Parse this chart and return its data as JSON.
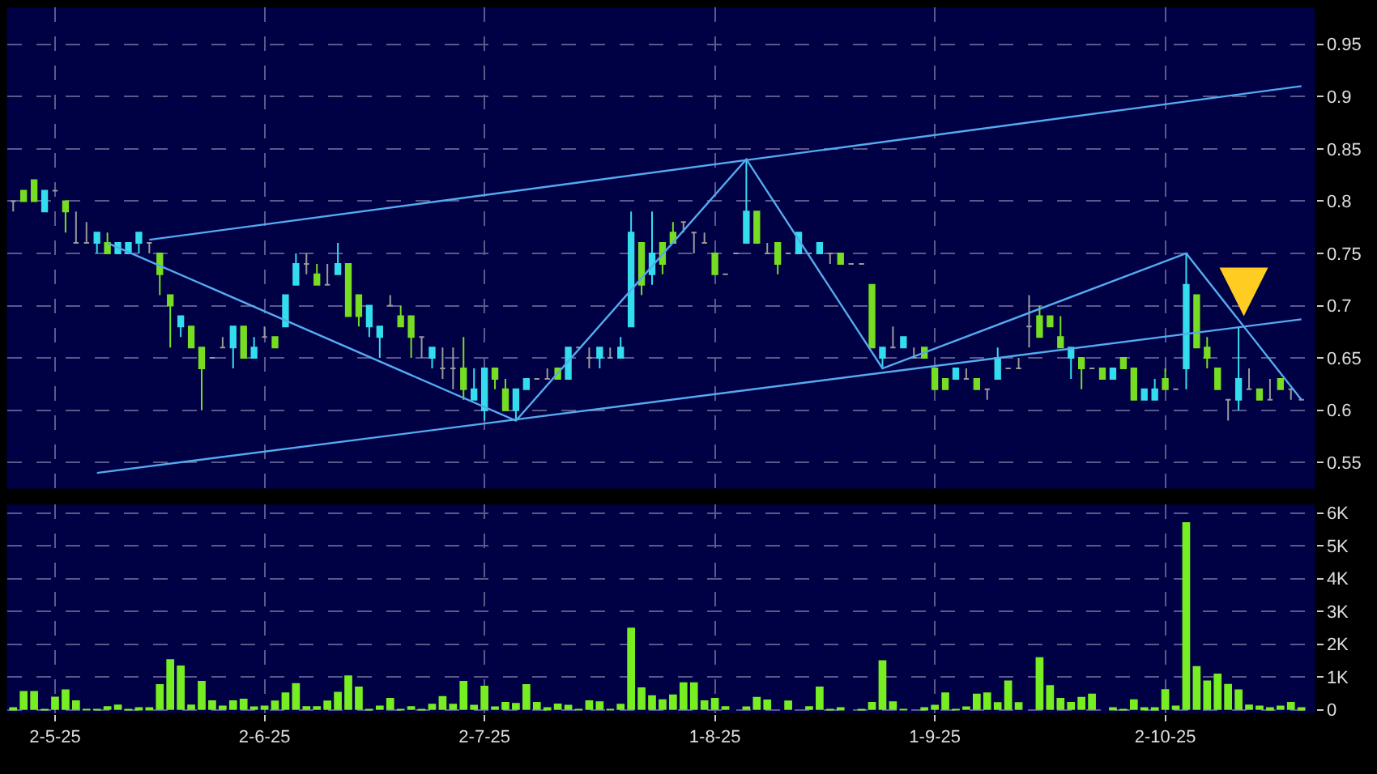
{
  "chart_data": [
    {
      "type": "candlestick",
      "categories": [
        null,
        null,
        null,
        null,
        null,
        null,
        null,
        null,
        null,
        null,
        null,
        null,
        null,
        null,
        null,
        null,
        null,
        null,
        null,
        null,
        null,
        null,
        null,
        null,
        null,
        null,
        null,
        null,
        null,
        null,
        null,
        null,
        null,
        null,
        null,
        null,
        null,
        null,
        null,
        null,
        null,
        null,
        null,
        null,
        null,
        null,
        null,
        null,
        null,
        null,
        null,
        null,
        null,
        null,
        null,
        null,
        null,
        null,
        null,
        null,
        null,
        null,
        null,
        null,
        null,
        null,
        null,
        null,
        null,
        null,
        null,
        null,
        null,
        null,
        null,
        null,
        null,
        null,
        null,
        null,
        null,
        null,
        null,
        null,
        null,
        null,
        null,
        null,
        null,
        null,
        null,
        null,
        null,
        null,
        null,
        null,
        null,
        null,
        null,
        null,
        null,
        null,
        null,
        null,
        null,
        null,
        null,
        null,
        null,
        null,
        null,
        null,
        null,
        null,
        null,
        null,
        null,
        null,
        null,
        null,
        null,
        null,
        null,
        null
      ],
      "ohlc": [
        [
          0.8,
          0.8,
          0.79,
          0.8
        ],
        [
          0.81,
          0.81,
          0.8,
          0.8
        ],
        [
          0.82,
          0.82,
          0.8,
          0.8
        ],
        [
          0.79,
          0.81,
          0.79,
          0.81
        ],
        [
          0.81,
          0.81,
          0.81,
          0.81
        ],
        [
          0.8,
          0.8,
          0.77,
          0.79
        ],
        [
          0.76,
          0.79,
          0.76,
          0.76
        ],
        [
          0.76,
          0.78,
          0.76,
          0.76
        ],
        [
          0.76,
          0.77,
          0.75,
          0.77
        ],
        [
          0.76,
          0.77,
          0.75,
          0.75
        ],
        [
          0.75,
          0.76,
          0.75,
          0.76
        ],
        [
          0.75,
          0.76,
          0.75,
          0.76
        ],
        [
          0.76,
          0.77,
          0.75,
          0.77
        ],
        [
          0.76,
          0.76,
          0.75,
          0.76
        ],
        [
          0.75,
          0.75,
          0.71,
          0.73
        ],
        [
          0.71,
          0.71,
          0.66,
          0.7
        ],
        [
          0.68,
          0.69,
          0.67,
          0.69
        ],
        [
          0.68,
          0.68,
          0.66,
          0.66
        ],
        [
          0.66,
          0.66,
          0.6,
          0.64
        ],
        [
          0.65,
          0.65,
          0.65,
          0.65
        ],
        [
          0.66,
          0.67,
          0.66,
          0.66
        ],
        [
          0.66,
          0.68,
          0.64,
          0.68
        ],
        [
          0.68,
          0.68,
          0.65,
          0.65
        ],
        [
          0.65,
          0.67,
          0.65,
          0.66
        ],
        [
          0.67,
          0.68,
          0.67,
          0.67
        ],
        [
          0.67,
          0.67,
          0.66,
          0.66
        ],
        [
          0.68,
          0.71,
          0.68,
          0.71
        ],
        [
          0.72,
          0.75,
          0.72,
          0.74
        ],
        [
          0.74,
          0.75,
          0.73,
          0.74
        ],
        [
          0.73,
          0.74,
          0.72,
          0.72
        ],
        [
          0.72,
          0.74,
          0.72,
          0.72
        ],
        [
          0.73,
          0.76,
          0.73,
          0.74
        ],
        [
          0.74,
          0.74,
          0.69,
          0.69
        ],
        [
          0.71,
          0.71,
          0.68,
          0.69
        ],
        [
          0.68,
          0.7,
          0.67,
          0.7
        ],
        [
          0.67,
          0.68,
          0.65,
          0.68
        ],
        [
          0.7,
          0.71,
          0.7,
          0.7
        ],
        [
          0.69,
          0.7,
          0.68,
          0.68
        ],
        [
          0.69,
          0.69,
          0.65,
          0.67
        ],
        [
          0.67,
          0.67,
          0.65,
          0.67
        ],
        [
          0.65,
          0.66,
          0.64,
          0.66
        ],
        [
          0.64,
          0.66,
          0.63,
          0.64
        ],
        [
          0.64,
          0.66,
          0.62,
          0.64
        ],
        [
          0.64,
          0.67,
          0.61,
          0.62
        ],
        [
          0.61,
          0.64,
          0.61,
          0.62
        ],
        [
          0.6,
          0.64,
          0.59,
          0.64
        ],
        [
          0.64,
          0.64,
          0.62,
          0.63
        ],
        [
          0.62,
          0.63,
          0.6,
          0.6
        ],
        [
          0.6,
          0.62,
          0.59,
          0.62
        ],
        [
          0.62,
          0.63,
          0.62,
          0.63
        ],
        [
          0.63,
          0.63,
          0.63,
          0.63
        ],
        [
          0.63,
          0.64,
          0.63,
          0.63
        ],
        [
          0.64,
          0.64,
          0.63,
          0.63
        ],
        [
          0.63,
          0.66,
          0.63,
          0.66
        ],
        [
          0.66,
          0.66,
          0.66,
          0.66
        ],
        [
          0.65,
          0.66,
          0.64,
          0.65
        ],
        [
          0.65,
          0.66,
          0.64,
          0.66
        ],
        [
          0.65,
          0.66,
          0.65,
          0.65
        ],
        [
          0.65,
          0.67,
          0.65,
          0.66
        ],
        [
          0.68,
          0.79,
          0.68,
          0.77
        ],
        [
          0.76,
          0.76,
          0.71,
          0.72
        ],
        [
          0.73,
          0.79,
          0.72,
          0.75
        ],
        [
          0.76,
          0.76,
          0.73,
          0.74
        ],
        [
          0.77,
          0.78,
          0.76,
          0.76
        ],
        [
          0.78,
          0.78,
          0.77,
          0.78
        ],
        [
          0.77,
          0.77,
          0.75,
          0.77
        ],
        [
          0.76,
          0.77,
          0.76,
          0.76
        ],
        [
          0.75,
          0.75,
          0.73,
          0.73
        ],
        [
          0.73,
          0.73,
          0.73,
          0.73
        ],
        [
          0.75,
          0.75,
          0.75,
          0.75
        ],
        [
          0.76,
          0.84,
          0.76,
          0.79
        ],
        [
          0.79,
          0.79,
          0.76,
          0.76
        ],
        [
          0.75,
          0.76,
          0.75,
          0.75
        ],
        [
          0.76,
          0.76,
          0.73,
          0.74
        ],
        [
          0.75,
          0.75,
          0.75,
          0.75
        ],
        [
          0.75,
          0.77,
          0.75,
          0.77
        ],
        [
          0.75,
          0.75,
          0.75,
          0.75
        ],
        [
          0.75,
          0.76,
          0.75,
          0.76
        ],
        [
          0.75,
          0.75,
          0.74,
          0.75
        ],
        [
          0.75,
          0.75,
          0.74,
          0.74
        ],
        [
          0.74,
          0.74,
          0.74,
          0.74
        ],
        [
          0.74,
          0.74,
          0.74,
          0.74
        ],
        [
          0.72,
          0.72,
          0.66,
          0.66
        ],
        [
          0.65,
          0.66,
          0.64,
          0.66
        ],
        [
          0.66,
          0.68,
          0.66,
          0.66
        ],
        [
          0.66,
          0.67,
          0.66,
          0.67
        ],
        [
          0.65,
          0.66,
          0.65,
          0.65
        ],
        [
          0.66,
          0.66,
          0.65,
          0.65
        ],
        [
          0.64,
          0.64,
          0.62,
          0.62
        ],
        [
          0.63,
          0.63,
          0.62,
          0.62
        ],
        [
          0.63,
          0.64,
          0.63,
          0.64
        ],
        [
          0.63,
          0.64,
          0.63,
          0.63
        ],
        [
          0.63,
          0.63,
          0.62,
          0.62
        ],
        [
          0.62,
          0.62,
          0.61,
          0.62
        ],
        [
          0.63,
          0.66,
          0.63,
          0.65
        ],
        [
          0.64,
          0.64,
          0.64,
          0.64
        ],
        [
          0.64,
          0.65,
          0.64,
          0.64
        ],
        [
          0.68,
          0.71,
          0.66,
          0.68
        ],
        [
          0.69,
          0.7,
          0.67,
          0.67
        ],
        [
          0.69,
          0.69,
          0.68,
          0.68
        ],
        [
          0.67,
          0.69,
          0.66,
          0.66
        ],
        [
          0.65,
          0.66,
          0.63,
          0.66
        ],
        [
          0.65,
          0.65,
          0.62,
          0.64
        ],
        [
          0.64,
          0.64,
          0.64,
          0.64
        ],
        [
          0.64,
          0.64,
          0.63,
          0.63
        ],
        [
          0.63,
          0.64,
          0.63,
          0.64
        ],
        [
          0.65,
          0.65,
          0.64,
          0.64
        ],
        [
          0.64,
          0.64,
          0.61,
          0.61
        ],
        [
          0.61,
          0.62,
          0.61,
          0.62
        ],
        [
          0.61,
          0.63,
          0.61,
          0.62
        ],
        [
          0.63,
          0.64,
          0.62,
          0.62
        ],
        [
          0.62,
          0.62,
          0.62,
          0.62
        ],
        [
          0.64,
          0.75,
          0.62,
          0.72
        ],
        [
          0.71,
          0.71,
          0.66,
          0.66
        ],
        [
          0.66,
          0.67,
          0.64,
          0.65
        ],
        [
          0.64,
          0.64,
          0.62,
          0.62
        ],
        [
          0.61,
          0.61,
          0.59,
          0.61
        ],
        [
          0.61,
          0.68,
          0.6,
          0.63
        ],
        [
          0.62,
          0.64,
          0.62,
          0.62
        ],
        [
          0.62,
          0.62,
          0.61,
          0.61
        ],
        [
          0.61,
          0.63,
          0.61,
          0.61
        ],
        [
          0.63,
          0.63,
          0.62,
          0.62
        ],
        [
          0.62,
          0.62,
          0.61,
          0.62
        ],
        [
          0.61,
          0.61,
          0.61,
          0.61
        ]
      ],
      "colors": [
        "#999999",
        "#77dd22",
        "#77dd22",
        "#33ddee",
        "#999999",
        "#77dd22",
        "#999999",
        "#999999",
        "#33ddee",
        "#77dd22",
        "#33ddee",
        "#33ddee",
        "#33ddee",
        "#999999",
        "#77dd22",
        "#77dd22",
        "#33ddee",
        "#77dd22",
        "#77dd22",
        "#999999",
        "#999999",
        "#33ddee",
        "#77dd22",
        "#33ddee",
        "#999999",
        "#77dd22",
        "#33ddee",
        "#33ddee",
        "#999999",
        "#77dd22",
        "#999999",
        "#33ddee",
        "#77dd22",
        "#77dd22",
        "#33ddee",
        "#33ddee",
        "#999999",
        "#77dd22",
        "#77dd22",
        "#999999",
        "#33ddee",
        "#999999",
        "#999999",
        "#77dd22",
        "#33ddee",
        "#33ddee",
        "#77dd22",
        "#77dd22",
        "#33ddee",
        "#33ddee",
        "#999999",
        "#999999",
        "#77dd22",
        "#33ddee",
        "#999999",
        "#999999",
        "#33ddee",
        "#999999",
        "#33ddee",
        "#33ddee",
        "#77dd22",
        "#33ddee",
        "#77dd22",
        "#77dd22",
        "#999999",
        "#999999",
        "#999999",
        "#77dd22",
        "#999999",
        "#999999",
        "#33ddee",
        "#77dd22",
        "#999999",
        "#77dd22",
        "#999999",
        "#33ddee",
        "#999999",
        "#33ddee",
        "#999999",
        "#77dd22",
        "#999999",
        "#999999",
        "#77dd22",
        "#33ddee",
        "#999999",
        "#33ddee",
        "#999999",
        "#77dd22",
        "#77dd22",
        "#77dd22",
        "#33ddee",
        "#999999",
        "#77dd22",
        "#999999",
        "#33ddee",
        "#999999",
        "#999999",
        "#999999",
        "#77dd22",
        "#77dd22",
        "#77dd22",
        "#33ddee",
        "#77dd22",
        "#999999",
        "#77dd22",
        "#33ddee",
        "#77dd22",
        "#77dd22",
        "#33ddee",
        "#33ddee",
        "#77dd22",
        "#999999",
        "#33ddee",
        "#77dd22",
        "#77dd22",
        "#77dd22",
        "#999999",
        "#33ddee",
        "#999999",
        "#77dd22",
        "#999999",
        "#77dd22",
        "#999999",
        "#999999"
      ],
      "series": [
        {
          "type": "line",
          "color": "#55aaee",
          "values": [
            null,
            null,
            null,
            null,
            null,
            null,
            null,
            null,
            null,
            null,
            null,
            null,
            null,
            0.763,
            null,
            null,
            null,
            null,
            null,
            null,
            null,
            null,
            null,
            null,
            null,
            null,
            null,
            null,
            null,
            null,
            null,
            null,
            null,
            null,
            null,
            null,
            null,
            null,
            null,
            null,
            null,
            null,
            null,
            null,
            null,
            null,
            null,
            null,
            null,
            null,
            null,
            null,
            null,
            null,
            null,
            null,
            null,
            null,
            null,
            null,
            null,
            null,
            null,
            null,
            null,
            null,
            null,
            null,
            null,
            null,
            null,
            null,
            null,
            null,
            null,
            null,
            null,
            null,
            null,
            null,
            null,
            null,
            null,
            null,
            null,
            null,
            null,
            null,
            null,
            null,
            null,
            null,
            null,
            null,
            null,
            null,
            null,
            null,
            null,
            null,
            null,
            null,
            null,
            null,
            null,
            null,
            null,
            null,
            null,
            null,
            null,
            null,
            null,
            null,
            null,
            null,
            null,
            null,
            null,
            null,
            null,
            null,
            null,
            0.91
          ]
        },
        {
          "type": "line",
          "color": "#55aaee",
          "values": [
            null,
            null,
            null,
            null,
            null,
            null,
            null,
            null,
            0.54,
            null,
            null,
            null,
            null,
            null,
            null,
            null,
            null,
            null,
            null,
            null,
            null,
            null,
            null,
            null,
            null,
            null,
            null,
            null,
            null,
            null,
            null,
            null,
            null,
            null,
            null,
            null,
            null,
            null,
            null,
            null,
            null,
            null,
            null,
            null,
            null,
            null,
            null,
            null,
            null,
            null,
            null,
            null,
            null,
            null,
            null,
            null,
            null,
            null,
            null,
            null,
            null,
            null,
            null,
            null,
            null,
            null,
            null,
            null,
            null,
            null,
            null,
            null,
            null,
            null,
            null,
            null,
            null,
            null,
            null,
            null,
            null,
            null,
            null,
            null,
            null,
            null,
            null,
            null,
            null,
            null,
            null,
            null,
            null,
            null,
            null,
            null,
            null,
            null,
            null,
            null,
            null,
            null,
            null,
            null,
            null,
            null,
            null,
            null,
            null,
            null,
            null,
            null,
            null,
            null,
            null,
            null,
            null,
            null,
            null,
            null,
            null,
            null,
            null,
            0.687
          ]
        },
        {
          "type": "line",
          "color": "#55aaee",
          "values": [
            null,
            null,
            null,
            null,
            null,
            null,
            null,
            null,
            null,
            0.76,
            null,
            null,
            null,
            null,
            null,
            null,
            null,
            null,
            null,
            null,
            null,
            null,
            null,
            null,
            null,
            null,
            null,
            null,
            null,
            null,
            null,
            null,
            null,
            null,
            null,
            null,
            null,
            null,
            null,
            null,
            null,
            null,
            null,
            null,
            null,
            null,
            null,
            null,
            0.59,
            null,
            null,
            null,
            null,
            null,
            null,
            null,
            null,
            null,
            null,
            null,
            null,
            null,
            null,
            null,
            null,
            null,
            null,
            null,
            null,
            null,
            0.84,
            null,
            null,
            null,
            null,
            null,
            null,
            null,
            null,
            null,
            null,
            null,
            null,
            0.64,
            null,
            null,
            null,
            null,
            null,
            null,
            null,
            null,
            null,
            null,
            null,
            null,
            null,
            null,
            null,
            null,
            null,
            null,
            null,
            null,
            null,
            null,
            null,
            null,
            null,
            null,
            null,
            null,
            0.75,
            null,
            null,
            null,
            null,
            null,
            null,
            null,
            null,
            null,
            null,
            0.61
          ]
        }
      ],
      "ylim": [
        0.525,
        0.985
      ],
      "yticks": [
        0.55,
        0.6,
        0.65,
        0.7,
        0.75,
        0.8,
        0.85,
        0.9,
        0.95
      ],
      "grid": true,
      "tick_labels": "y"
    },
    {
      "type": "bar",
      "categories": [
        null,
        null,
        null,
        null,
        "2-5-25",
        null,
        null,
        null,
        null,
        null,
        null,
        null,
        null,
        null,
        null,
        null,
        null,
        null,
        null,
        null,
        null,
        null,
        null,
        null,
        "2-6-25",
        null,
        null,
        null,
        null,
        null,
        null,
        null,
        null,
        null,
        null,
        null,
        null,
        null,
        null,
        null,
        null,
        null,
        null,
        null,
        null,
        "2-7-25",
        null,
        null,
        null,
        null,
        null,
        null,
        null,
        null,
        null,
        null,
        null,
        null,
        null,
        null,
        null,
        null,
        null,
        null,
        null,
        null,
        null,
        "1-8-25",
        null,
        null,
        null,
        null,
        null,
        null,
        null,
        null,
        null,
        null,
        null,
        null,
        null,
        null,
        null,
        null,
        null,
        null,
        null,
        null,
        "1-9-25",
        null,
        null,
        null,
        null,
        null,
        null,
        null,
        null,
        null,
        null,
        null,
        null,
        null,
        null,
        null,
        null,
        null,
        null,
        null,
        null,
        null,
        "2-10-25",
        null,
        null,
        null,
        null,
        null,
        null,
        null,
        null,
        null,
        null,
        null,
        null,
        null
      ],
      "values": [
        50,
        570,
        570,
        30,
        400,
        620,
        290,
        20,
        30,
        110,
        160,
        30,
        60,
        50,
        780,
        1540,
        1350,
        160,
        880,
        290,
        130,
        290,
        340,
        100,
        130,
        280,
        530,
        810,
        110,
        110,
        280,
        550,
        1050,
        710,
        30,
        130,
        360,
        20,
        110,
        20,
        180,
        420,
        180,
        880,
        150,
        730,
        100,
        240,
        210,
        780,
        240,
        60,
        190,
        150,
        20,
        290,
        260,
        30,
        180,
        2500,
        680,
        440,
        320,
        470,
        840,
        840,
        290,
        360,
        110,
        0,
        100,
        390,
        310,
        0,
        280,
        0,
        110,
        710,
        30,
        50,
        0,
        20,
        240,
        1510,
        260,
        20,
        0,
        50,
        150,
        530,
        30,
        100,
        490,
        530,
        230,
        890,
        230,
        0,
        1600,
        750,
        360,
        240,
        390,
        490,
        0,
        60,
        30,
        320,
        60,
        60,
        630,
        130,
        5720,
        1330,
        890,
        1100,
        790,
        620,
        160,
        130,
        60,
        130,
        240,
        50
      ],
      "color": "#77ee22",
      "ylim": [
        -100,
        6250
      ],
      "yticks": [
        0,
        {
          "value": 1000,
          "label": "1K"
        },
        {
          "value": 2000,
          "label": "2K"
        },
        {
          "value": 3000,
          "label": "3K"
        },
        {
          "value": 4000,
          "label": "4K"
        },
        {
          "value": 5000,
          "label": "5K"
        },
        {
          "value": 6000,
          "label": "6K"
        }
      ],
      "grid": true
    }
  ]
}
